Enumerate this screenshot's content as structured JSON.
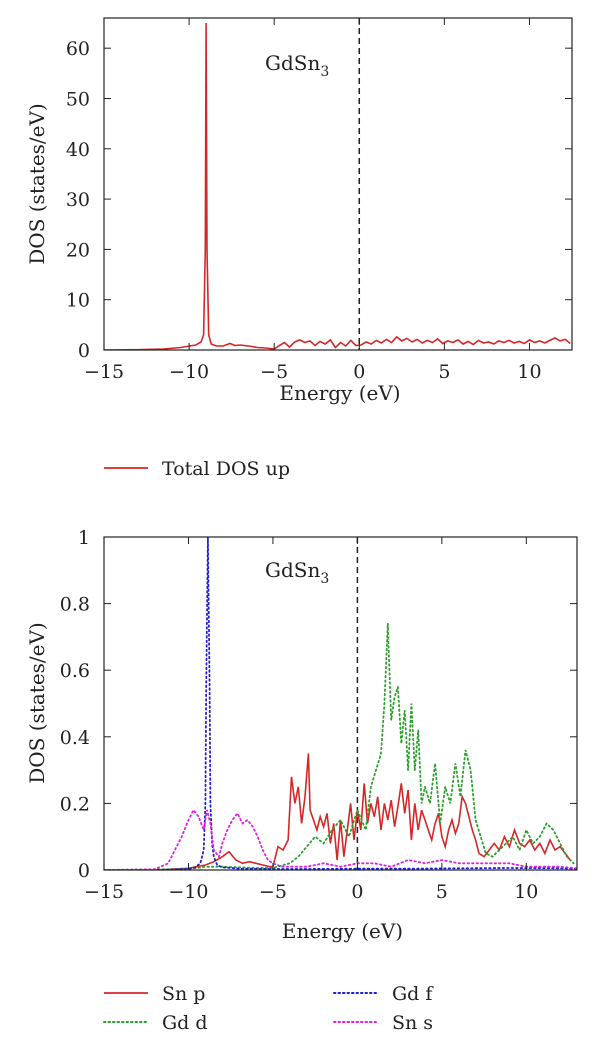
{
  "chart_data": [
    {
      "type": "line",
      "annotation": "GdSn",
      "annotation_sub": "3",
      "xlabel": "Energy (eV)",
      "ylabel": "DOS (states/eV)",
      "xlim": [
        -15,
        12.5
      ],
      "ylim": [
        0,
        66
      ],
      "xticks": [
        -15,
        -10,
        -5,
        0,
        5,
        10
      ],
      "yticks": [
        0,
        10,
        20,
        30,
        40,
        50,
        60
      ],
      "xtick_labels": [
        "−15",
        "−10",
        "−5",
        "0",
        "5",
        "10"
      ],
      "ytick_labels": [
        "0",
        "10",
        "20",
        "30",
        "40",
        "50",
        "60"
      ],
      "vline_x": 0,
      "legend_position": "below",
      "series": [
        {
          "name": "Total DOS up",
          "color": "#d62728",
          "style": "solid",
          "x": [
            -15,
            -13,
            -11.5,
            -10.5,
            -9.6,
            -9.3,
            -9.15,
            -9.05,
            -9.0,
            -8.95,
            -8.85,
            -8.7,
            -8.4,
            -8,
            -7.6,
            -7.3,
            -7,
            -6.5,
            -6,
            -5.5,
            -5,
            -4.7,
            -4.4,
            -4.1,
            -3.8,
            -3.5,
            -3.2,
            -2.9,
            -2.6,
            -2.3,
            -2,
            -1.7,
            -1.4,
            -1.1,
            -0.8,
            -0.5,
            -0.2,
            0.1,
            0.4,
            0.7,
            1,
            1.3,
            1.6,
            1.9,
            2.2,
            2.5,
            2.8,
            3.1,
            3.4,
            3.7,
            4,
            4.3,
            4.6,
            4.9,
            5.2,
            5.5,
            5.8,
            6.1,
            6.4,
            6.7,
            7,
            7.3,
            7.6,
            7.9,
            8.2,
            8.5,
            8.8,
            9.1,
            9.4,
            9.7,
            10,
            10.3,
            10.6,
            10.9,
            11.2,
            11.5,
            11.8,
            12.1,
            12.4
          ],
          "y": [
            0,
            0.05,
            0.2,
            0.5,
            1.0,
            1.6,
            3,
            20,
            65,
            20,
            3,
            1.2,
            0.8,
            0.8,
            1.3,
            0.9,
            1.0,
            0.8,
            0.5,
            0.4,
            0.2,
            0.9,
            1.5,
            0.6,
            1.6,
            2.0,
            1.5,
            1.8,
            0.9,
            1.7,
            1.2,
            2.0,
            0.5,
            1.5,
            0.8,
            1.9,
            0.9,
            1.0,
            1.6,
            1.2,
            1.9,
            1.4,
            2.1,
            1.5,
            2.6,
            1.8,
            2.3,
            1.6,
            2.1,
            1.4,
            1.9,
            1.5,
            2.2,
            1.3,
            1.8,
            1.5,
            2.0,
            1.2,
            1.7,
            1.1,
            1.9,
            1.4,
            1.6,
            1.2,
            1.8,
            1.5,
            1.9,
            1.4,
            1.7,
            1.3,
            2.0,
            1.5,
            1.8,
            1.4,
            1.9,
            2.4,
            1.8,
            2.1,
            1.3
          ]
        }
      ]
    },
    {
      "type": "line",
      "annotation": "GdSn",
      "annotation_sub": "3",
      "xlabel": "Energy (eV)",
      "ylabel": "DOS (states/eV)",
      "xlim": [
        -15,
        13
      ],
      "ylim": [
        0,
        1
      ],
      "xticks": [
        -15,
        -10,
        -5,
        0,
        5,
        10
      ],
      "yticks": [
        0,
        0.2,
        0.4,
        0.6,
        0.8,
        1
      ],
      "xtick_labels": [
        "−15",
        "−10",
        "−5",
        "0",
        "5",
        "10"
      ],
      "ytick_labels": [
        "0",
        "0.2",
        "0.4",
        "0.6",
        "0.8",
        "1"
      ],
      "vline_x": 0,
      "legend_position": "below",
      "series": [
        {
          "name": "Sn p",
          "color": "#d62728",
          "style": "solid",
          "x": [
            -15,
            -12,
            -10,
            -9,
            -8.5,
            -8,
            -7.6,
            -7.2,
            -6.8,
            -6.4,
            -6,
            -5.6,
            -5.2,
            -5,
            -4.7,
            -4.4,
            -4.1,
            -3.9,
            -3.7,
            -3.5,
            -3.3,
            -3.1,
            -2.9,
            -2.8,
            -2.6,
            -2.4,
            -2.2,
            -2.0,
            -1.8,
            -1.6,
            -1.4,
            -1.2,
            -1.0,
            -0.8,
            -0.6,
            -0.4,
            -0.2,
            0,
            0.2,
            0.4,
            0.6,
            0.8,
            1.0,
            1.2,
            1.4,
            1.6,
            1.8,
            2.0,
            2.2,
            2.4,
            2.6,
            2.8,
            3.0,
            3.2,
            3.4,
            3.6,
            3.8,
            4.0,
            4.2,
            4.4,
            4.6,
            4.8,
            5.0,
            5.2,
            5.4,
            5.6,
            5.8,
            6.0,
            6.2,
            6.4,
            6.6,
            6.8,
            7.0,
            7.2,
            7.5,
            7.8,
            8.1,
            8.4,
            8.7,
            9.0,
            9.3,
            9.6,
            9.9,
            10.2,
            10.5,
            10.8,
            11.1,
            11.4,
            11.7,
            12.0,
            12.3,
            12.6
          ],
          "y": [
            0,
            0,
            0.005,
            0.015,
            0.025,
            0.04,
            0.055,
            0.03,
            0.02,
            0.025,
            0.02,
            0.015,
            0.01,
            0.01,
            0.07,
            0.06,
            0.09,
            0.28,
            0.2,
            0.25,
            0.14,
            0.22,
            0.35,
            0.18,
            0.15,
            0.12,
            0.16,
            0.13,
            0.17,
            0.08,
            0.14,
            0.03,
            0.15,
            0.04,
            0.12,
            0.2,
            0.09,
            0.18,
            0.12,
            0.26,
            0.14,
            0.2,
            0.16,
            0.22,
            0.12,
            0.2,
            0.15,
            0.21,
            0.13,
            0.19,
            0.26,
            0.17,
            0.24,
            0.09,
            0.2,
            0.12,
            0.18,
            0.15,
            0.12,
            0.09,
            0.14,
            0.17,
            0.1,
            0.07,
            0.12,
            0.15,
            0.11,
            0.14,
            0.22,
            0.2,
            0.16,
            0.12,
            0.09,
            0.05,
            0.04,
            0.06,
            0.08,
            0.06,
            0.1,
            0.07,
            0.12,
            0.08,
            0.07,
            0.09,
            0.06,
            0.08,
            0.05,
            0.09,
            0.06,
            0.07,
            0.05,
            0.03
          ]
        },
        {
          "name": "Gd d",
          "color": "#2ca02c",
          "style": "dotted",
          "x": [
            -15,
            -11,
            -9.5,
            -9,
            -8.5,
            -8,
            -7,
            -6,
            -5,
            -4,
            -3.5,
            -3,
            -2.5,
            -2,
            -1.5,
            -1,
            -0.5,
            0,
            0.5,
            0.8,
            1.1,
            1.4,
            1.6,
            1.8,
            2.0,
            2.2,
            2.4,
            2.6,
            2.8,
            3.0,
            3.2,
            3.4,
            3.6,
            3.8,
            4.0,
            4.3,
            4.6,
            4.9,
            5.2,
            5.5,
            5.8,
            6.1,
            6.4,
            6.7,
            7.0,
            7.3,
            7.6,
            8.0,
            8.4,
            8.8,
            9.2,
            9.6,
            10.0,
            10.4,
            10.8,
            11.2,
            11.6,
            12.0,
            12.4,
            12.8
          ],
          "y": [
            0,
            0.002,
            0.006,
            0.01,
            0.01,
            0.01,
            0.008,
            0.006,
            0.006,
            0.02,
            0.04,
            0.07,
            0.1,
            0.08,
            0.12,
            0.15,
            0.1,
            0.18,
            0.12,
            0.25,
            0.3,
            0.35,
            0.5,
            0.74,
            0.45,
            0.52,
            0.55,
            0.38,
            0.48,
            0.3,
            0.5,
            0.3,
            0.42,
            0.2,
            0.25,
            0.2,
            0.32,
            0.14,
            0.25,
            0.2,
            0.32,
            0.22,
            0.36,
            0.3,
            0.15,
            0.1,
            0.05,
            0.04,
            0.06,
            0.08,
            0.1,
            0.06,
            0.12,
            0.08,
            0.1,
            0.14,
            0.12,
            0.08,
            0.04,
            0.02
          ]
        },
        {
          "name": "Gd f",
          "color": "#1f1fcf",
          "style": "dotted",
          "x": [
            -15,
            -12,
            -10,
            -9.6,
            -9.3,
            -9.1,
            -9.0,
            -8.95,
            -8.85,
            -8.75,
            -8.7,
            -8.6,
            -8.5,
            -8.3,
            -8,
            -7,
            -5,
            -3,
            0,
            3,
            6,
            9,
            12,
            13
          ],
          "y": [
            0,
            0,
            0.003,
            0.008,
            0.02,
            0.06,
            0.2,
            0.55,
            1.0,
            0.55,
            0.2,
            0.08,
            0.04,
            0.015,
            0.008,
            0.004,
            0.003,
            0.003,
            0.004,
            0.004,
            0.005,
            0.006,
            0.005,
            0.004
          ]
        },
        {
          "name": "Sn s",
          "color": "#e020e0",
          "style": "dotted",
          "x": [
            -15,
            -12,
            -11.2,
            -10.8,
            -10.4,
            -10.0,
            -9.7,
            -9.4,
            -9.1,
            -8.9,
            -8.7,
            -8.5,
            -8.2,
            -8.0,
            -7.7,
            -7.4,
            -7.1,
            -6.8,
            -6.5,
            -6.2,
            -5.9,
            -5.6,
            -5.3,
            -5.0,
            -4.5,
            -4.0,
            -3.0,
            -2.0,
            -1.0,
            0,
            1.0,
            2.0,
            3.0,
            4.0,
            5.0,
            6.0,
            7.0,
            8.0,
            9.0,
            10.0,
            11.0,
            12.0,
            13.0
          ],
          "y": [
            0,
            0.002,
            0.02,
            0.06,
            0.1,
            0.15,
            0.18,
            0.16,
            0.12,
            0.18,
            0.14,
            0.06,
            0.04,
            0.08,
            0.12,
            0.15,
            0.17,
            0.14,
            0.15,
            0.13,
            0.1,
            0.06,
            0.03,
            0.02,
            0.01,
            0.01,
            0.01,
            0.02,
            0.01,
            0.02,
            0.02,
            0.01,
            0.03,
            0.02,
            0.03,
            0.02,
            0.02,
            0.02,
            0.02,
            0.01,
            0.01,
            0.01,
            0.005
          ]
        }
      ]
    }
  ]
}
